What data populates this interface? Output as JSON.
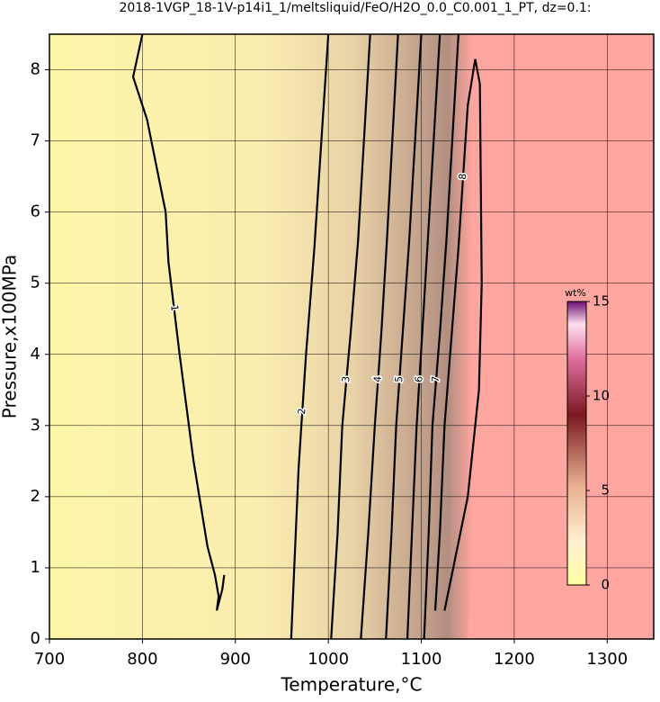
{
  "chart_data": {
    "type": "contour",
    "title": "2018-1VGP_18-1V-p14i1_1/meltsliquid/FeO/H2O_0.0_C0.001_1_PT, dz=0.1:",
    "x_label": "Temperature,°C",
    "y_label": "Pressure,x100MPa",
    "xlim": [
      700,
      1350
    ],
    "ylim": [
      0,
      8.5
    ],
    "xticks": [
      700,
      800,
      900,
      1000,
      1100,
      1200,
      1300
    ],
    "yticks": [
      0,
      1,
      2,
      3,
      4,
      5,
      6,
      7,
      8
    ],
    "grid": true,
    "line_color": "#000000",
    "contours": [
      {
        "level": 1,
        "x": [
          800,
          790,
          805,
          825,
          828,
          840,
          855,
          870,
          878,
          882,
          880,
          886,
          888
        ],
        "y": [
          8.5,
          7.9,
          7.3,
          6.0,
          5.3,
          4.0,
          2.5,
          1.3,
          0.9,
          0.6,
          0.4,
          0.7,
          0.9
        ],
        "label_at": 4
      },
      {
        "level": 2,
        "x": [
          960,
          964,
          968,
          976,
          985,
          1000
        ],
        "y": [
          0,
          1.2,
          2.4,
          4.0,
          5.5,
          8.5
        ],
        "label_at": 2
      },
      {
        "level": 3,
        "x": [
          1003,
          1010,
          1015,
          1024,
          1032,
          1045
        ],
        "y": [
          0,
          1.5,
          3.0,
          4.3,
          5.6,
          8.5
        ],
        "label_at": 2
      },
      {
        "level": 4,
        "x": [
          1035,
          1043,
          1050,
          1057,
          1063,
          1075
        ],
        "y": [
          0,
          1.5,
          3.0,
          4.3,
          5.6,
          8.5
        ],
        "label_at": 2
      },
      {
        "level": 5,
        "x": [
          1062,
          1068,
          1073,
          1080,
          1087,
          1100
        ],
        "y": [
          0,
          1.5,
          3.0,
          4.3,
          5.6,
          8.5
        ],
        "label_at": 2
      },
      {
        "level": 6,
        "x": [
          1085,
          1090,
          1095,
          1101,
          1107,
          1120
        ],
        "y": [
          0,
          1.5,
          3.0,
          4.3,
          5.6,
          8.5
        ],
        "label_at": 2
      },
      {
        "level": 7,
        "x": [
          1103,
          1108,
          1112,
          1120,
          1127,
          1140
        ],
        "y": [
          0,
          1.5,
          3.0,
          4.3,
          5.6,
          8.5
        ],
        "label_at": 2
      },
      {
        "level": 8,
        "x": [
          1115,
          1120,
          1125,
          1140,
          1150,
          1158,
          1163,
          1165,
          1162,
          1150,
          1125
        ],
        "y": [
          0.4,
          1.5,
          3.0,
          5.5,
          7.5,
          8.15,
          7.8,
          5.0,
          3.5,
          2.0,
          0.4
        ],
        "label_at": 3
      }
    ],
    "colorbar": {
      "label": "wt%",
      "lim": [
        0,
        15
      ],
      "ticks": [
        0,
        5,
        10,
        15
      ]
    }
  }
}
